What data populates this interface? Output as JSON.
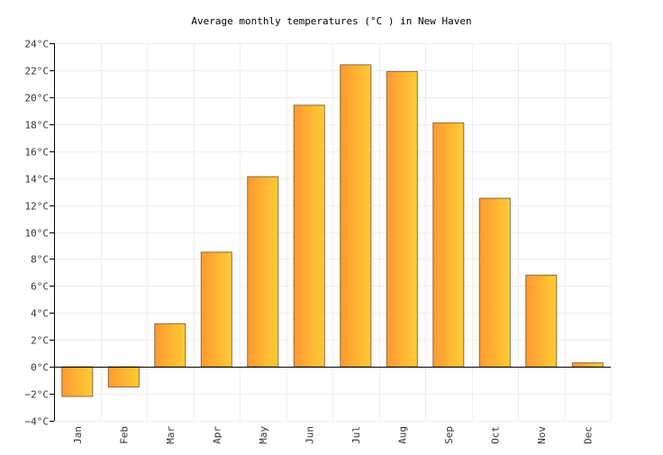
{
  "chart_data": {
    "type": "bar",
    "title": "Average monthly temperatures (°C ) in New Haven",
    "xlabel": "",
    "ylabel": "",
    "categories": [
      "Jan",
      "Feb",
      "Mar",
      "Apr",
      "May",
      "Jun",
      "Jul",
      "Aug",
      "Sep",
      "Oct",
      "Nov",
      "Dec"
    ],
    "series": [
      {
        "values": [
          -2.2,
          -1.5,
          3.2,
          8.5,
          14.1,
          19.4,
          22.4,
          21.9,
          18.1,
          12.5,
          6.8,
          0.3
        ]
      }
    ],
    "ylim": [
      -4,
      24
    ],
    "yticks": [
      -4,
      -2,
      0,
      2,
      4,
      6,
      8,
      10,
      12,
      14,
      16,
      18,
      20,
      22,
      24
    ],
    "ytick_labels": [
      "−4°C",
      "−2°C",
      "0°C",
      "2°C",
      "4°C",
      "6°C",
      "8°C",
      "10°C",
      "12°C",
      "14°C",
      "16°C",
      "18°C",
      "20°C",
      "22°C",
      "24°C"
    ],
    "grid": true,
    "legend": "none",
    "colors": {
      "bar_gradient_start": "#ff9933",
      "bar_gradient_end": "#ffcc33",
      "bar_stroke": "#8a6a3a",
      "grid": "#eeeeee",
      "zero_line": "#000000",
      "axis": "#000000",
      "text": "#333333"
    }
  }
}
